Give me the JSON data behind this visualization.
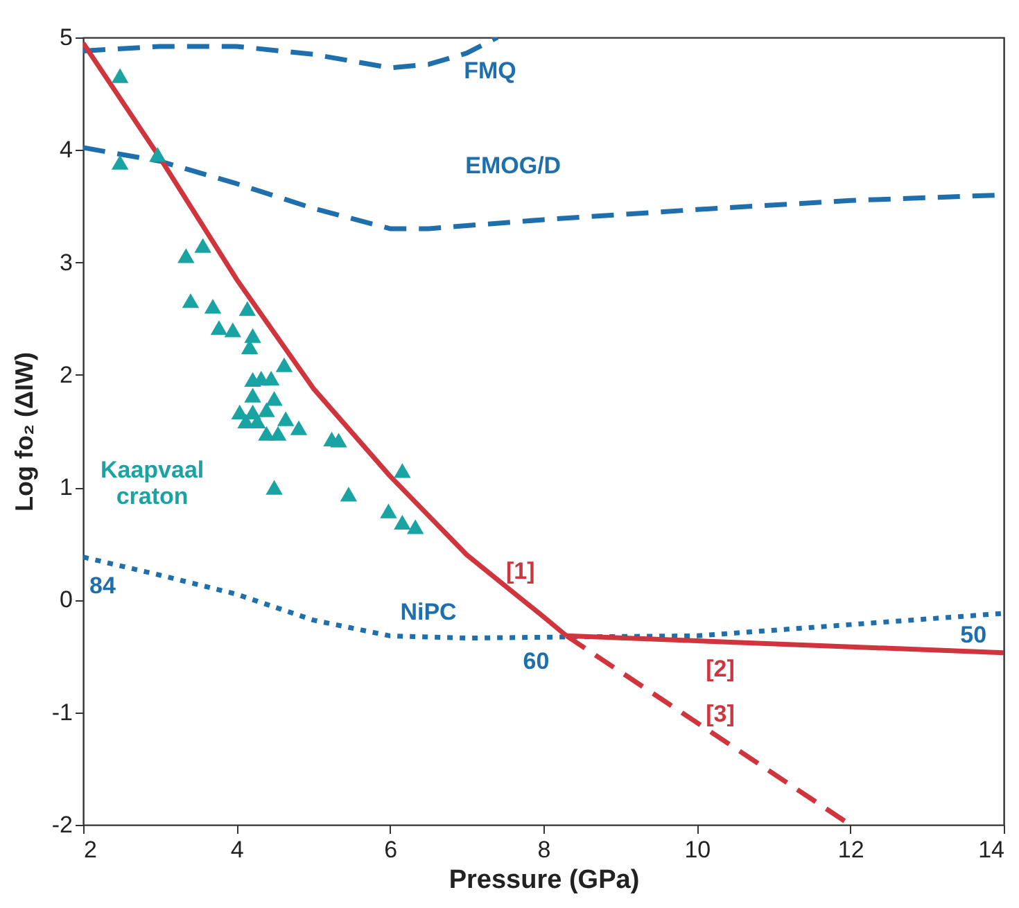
{
  "chart_data": {
    "type": "line",
    "xlabel": "Pressure (GPa)",
    "ylabel": "Log fo₂ (ΔIW)",
    "xlim": [
      2,
      14
    ],
    "xticks": [
      2,
      4,
      6,
      8,
      10,
      12,
      14
    ],
    "ylim": [
      -2,
      5
    ],
    "yticks": [
      -2,
      -1,
      0,
      1,
      2,
      3,
      4,
      5
    ],
    "grid": false,
    "series": [
      {
        "color": "#1f6fad",
        "line_style": "dashed",
        "x": [
          2,
          3,
          4,
          5,
          6,
          6.5,
          7,
          7.4
        ],
        "values": [
          4.88,
          4.92,
          4.92,
          4.85,
          4.73,
          4.76,
          4.86,
          5.0
        ]
      },
      {
        "color": "#1f6fad",
        "line_style": "dashed",
        "x": [
          2,
          3,
          4,
          5,
          6,
          6.5,
          8,
          10,
          12,
          14
        ],
        "values": [
          4.02,
          3.9,
          3.7,
          3.48,
          3.3,
          3.3,
          3.38,
          3.47,
          3.55,
          3.6
        ]
      },
      {
        "color": "#1f6fad",
        "line_style": "dotted",
        "x": [
          2,
          3,
          4,
          5,
          6,
          7,
          8.3,
          10,
          12,
          14
        ],
        "values": [
          0.38,
          0.22,
          0.05,
          -0.18,
          -0.32,
          -0.34,
          -0.33,
          -0.32,
          -0.22,
          -0.12
        ]
      },
      {
        "color": "#d0343c",
        "line_style": "solid",
        "x": [
          2,
          3,
          4,
          5,
          6,
          7,
          8,
          8.3
        ],
        "values": [
          4.95,
          3.93,
          2.85,
          1.88,
          1.1,
          0.4,
          -0.15,
          -0.32
        ]
      },
      {
        "color": "#d0343c",
        "line_style": "solid",
        "x": [
          8.3,
          14
        ],
        "values": [
          -0.32,
          -0.47
        ]
      },
      {
        "color": "#d0343c",
        "line_style": "dashed",
        "x": [
          8.3,
          12
        ],
        "values": [
          -0.32,
          -2.0
        ]
      },
      {
        "type": "scatter",
        "color": "#1aa3a3",
        "marker": "triangle",
        "x": [
          2.48,
          2.48,
          2.97,
          3.34,
          3.56,
          3.4,
          3.69,
          3.77,
          3.95,
          4.14,
          4.21,
          4.17,
          4.62,
          4.21,
          4.32,
          4.45,
          4.21,
          4.49,
          4.04,
          4.21,
          4.39,
          4.12,
          4.27,
          4.64,
          4.39,
          4.54,
          4.81,
          5.24,
          5.33,
          6.16,
          4.49,
          5.46,
          5.98,
          6.16,
          6.33
        ],
        "values": [
          4.66,
          3.89,
          3.96,
          3.06,
          3.15,
          2.66,
          2.61,
          2.42,
          2.4,
          2.59,
          2.35,
          2.25,
          2.09,
          1.96,
          1.97,
          1.97,
          1.82,
          1.79,
          1.67,
          1.67,
          1.69,
          1.59,
          1.59,
          1.61,
          1.48,
          1.48,
          1.53,
          1.43,
          1.42,
          1.15,
          1.0,
          0.94,
          0.79,
          0.69,
          0.65
        ]
      }
    ],
    "annotations": [
      "FMQ",
      "EMOG/D",
      "NiPC",
      "Kaapvaal craton",
      "[1]",
      "[2]",
      "[3]",
      "84",
      "60",
      "50"
    ]
  }
}
